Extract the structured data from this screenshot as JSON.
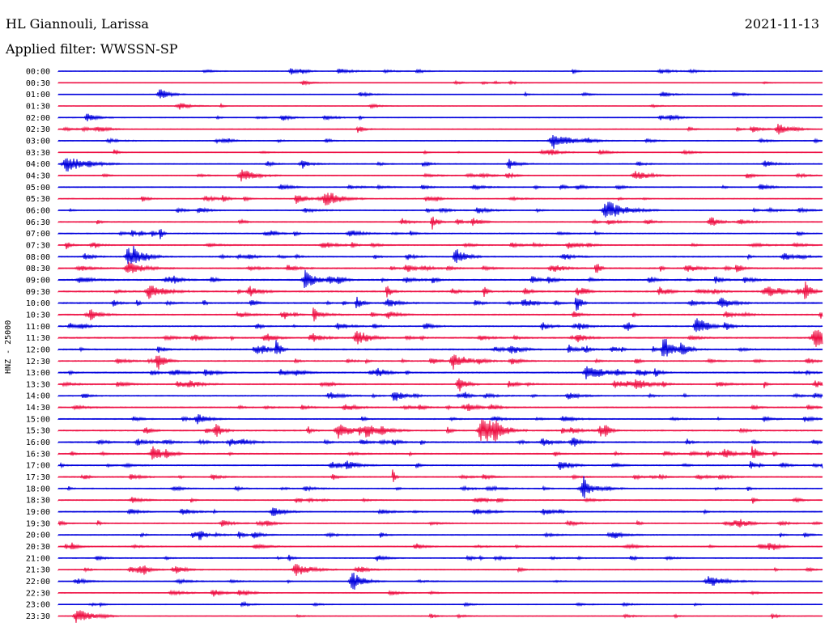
{
  "header": {
    "station": "HL Giannouli, Larissa",
    "date": "2021-11-13",
    "filter_label": "Applied filter: WWSSN-SP",
    "channel_label": "HNZ - 25000"
  },
  "chart_data": {
    "type": "line",
    "title": "",
    "xlabel": "",
    "ylabel": "HNZ - 25000",
    "grid": false,
    "legend": "none",
    "trace_colors": [
      "#0000dd",
      "#ee1144"
    ],
    "rows": [
      "00:00",
      "00:30",
      "01:00",
      "01:30",
      "02:00",
      "02:30",
      "03:00",
      "03:30",
      "04:00",
      "04:30",
      "05:00",
      "05:30",
      "06:00",
      "06:30",
      "07:00",
      "07:30",
      "08:00",
      "08:30",
      "09:00",
      "09:30",
      "10:00",
      "10:30",
      "11:00",
      "11:30",
      "12:00",
      "12:30",
      "13:00",
      "13:30",
      "14:00",
      "14:30",
      "15:00",
      "15:30",
      "16:00",
      "16:30",
      "17:00",
      "17:30",
      "18:00",
      "18:30",
      "19:00",
      "19:30",
      "20:00",
      "20:30",
      "21:00",
      "21:30",
      "22:00",
      "22:30",
      "23:00",
      "23:30"
    ],
    "activity": [
      0.35,
      0.15,
      0.15,
      0.1,
      0.35,
      0.4,
      0.45,
      0.25,
      0.45,
      0.4,
      0.45,
      0.5,
      0.5,
      0.55,
      0.6,
      0.65,
      0.75,
      0.8,
      0.85,
      0.95,
      0.9,
      0.8,
      0.8,
      0.8,
      0.85,
      0.75,
      0.75,
      0.75,
      0.7,
      0.6,
      0.55,
      0.85,
      0.85,
      0.7,
      0.65,
      0.65,
      0.6,
      0.55,
      0.55,
      0.6,
      0.6,
      0.55,
      0.5,
      0.5,
      0.35,
      0.35,
      0.25,
      0.25
    ]
  }
}
